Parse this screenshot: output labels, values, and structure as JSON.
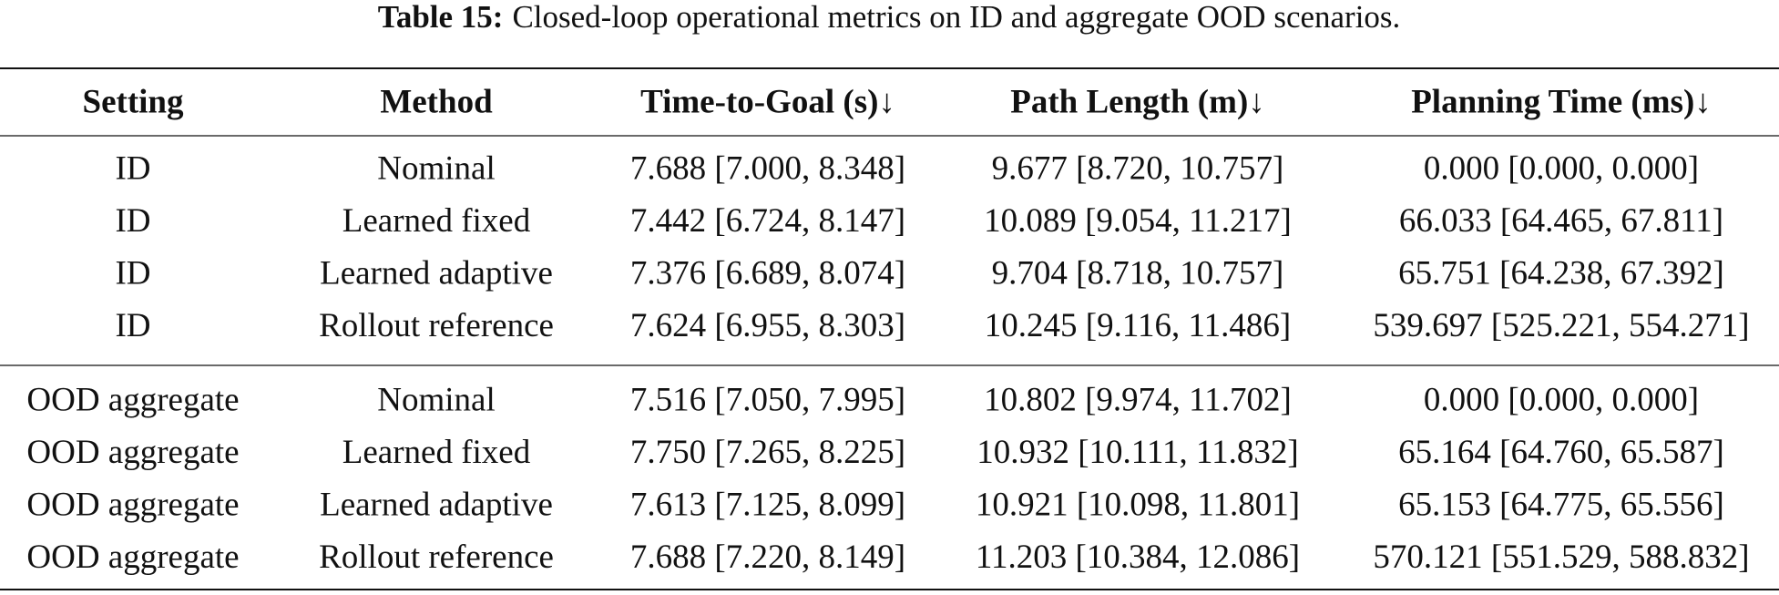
{
  "caption": {
    "label": "Table 15:",
    "text": "Closed-loop operational metrics on ID and aggregate OOD scenarios."
  },
  "table": {
    "headers": [
      "Setting",
      "Method",
      "Time-to-Goal (s)↓",
      "Path Length (m)↓",
      "Planning Time (ms)↓"
    ],
    "groups": [
      [
        [
          "ID",
          "Nominal",
          "7.688 [7.000, 8.348]",
          "9.677 [8.720, 10.757]",
          "0.000 [0.000, 0.000]"
        ],
        [
          "ID",
          "Learned fixed",
          "7.442 [6.724, 8.147]",
          "10.089 [9.054, 11.217]",
          "66.033 [64.465, 67.811]"
        ],
        [
          "ID",
          "Learned adaptive",
          "7.376 [6.689, 8.074]",
          "9.704 [8.718, 10.757]",
          "65.751 [64.238, 67.392]"
        ],
        [
          "ID",
          "Rollout reference",
          "7.624 [6.955, 8.303]",
          "10.245 [9.116, 11.486]",
          "539.697 [525.221, 554.271]"
        ]
      ],
      [
        [
          "OOD aggregate",
          "Nominal",
          "7.516 [7.050, 7.995]",
          "10.802 [9.974, 11.702]",
          "0.000 [0.000, 0.000]"
        ],
        [
          "OOD aggregate",
          "Learned fixed",
          "7.750 [7.265, 8.225]",
          "10.932 [10.111, 11.832]",
          "65.164 [64.760, 65.587]"
        ],
        [
          "OOD aggregate",
          "Learned adaptive",
          "7.613 [7.125, 8.099]",
          "10.921 [10.098, 11.801]",
          "65.153 [64.775, 65.556]"
        ],
        [
          "OOD aggregate",
          "Rollout reference",
          "7.688 [7.220, 8.149]",
          "11.203 [10.384, 12.086]",
          "570.121 [551.529, 588.832]"
        ]
      ]
    ]
  }
}
